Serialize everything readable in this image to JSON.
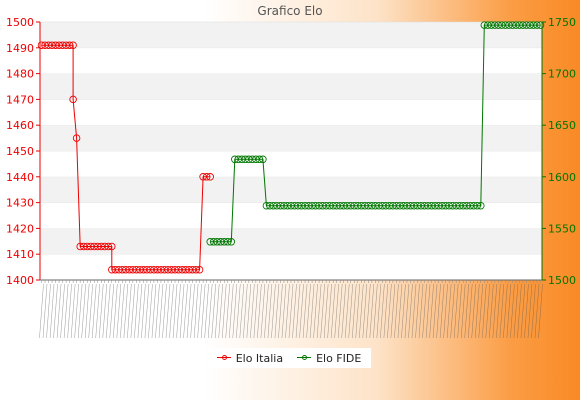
{
  "chart_data": {
    "type": "line",
    "title": "Grafico Elo",
    "xlabel": "",
    "ylabel": "",
    "ylim_left": [
      1400,
      1500
    ],
    "yticks_left": [
      1400,
      1410,
      1420,
      1430,
      1440,
      1450,
      1460,
      1470,
      1480,
      1490,
      1500
    ],
    "ylim_right": [
      1500,
      1750
    ],
    "yticks_right": [
      1500,
      1550,
      1600,
      1650,
      1700,
      1750
    ],
    "grid": "horizontal bands",
    "legend_position": "bottom",
    "point_count": 143,
    "series": [
      {
        "name": "Elo Italia",
        "axis": "left",
        "color": "#ee0000",
        "segments": [
          {
            "from": 0,
            "to": 9,
            "value": 1491
          },
          {
            "from": 9,
            "to": 9,
            "value": 1470
          },
          {
            "from": 10,
            "to": 10,
            "value": 1455
          },
          {
            "from": 11,
            "to": 20,
            "value": 1413
          },
          {
            "from": 20,
            "to": 45,
            "value": 1404
          },
          {
            "from": 46,
            "to": 48,
            "value": 1440
          }
        ]
      },
      {
        "name": "Elo FIDE",
        "axis": "right",
        "color": "#007700",
        "segments": [
          {
            "from": 48,
            "to": 54,
            "value": 1537
          },
          {
            "from": 55,
            "to": 63,
            "value": 1617
          },
          {
            "from": 64,
            "to": 125,
            "value": 1572
          },
          {
            "from": 126,
            "to": 142,
            "value": 1747
          }
        ]
      }
    ]
  }
}
